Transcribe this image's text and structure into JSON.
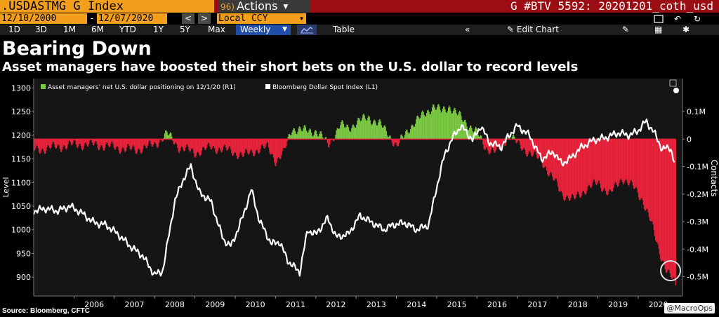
{
  "header": {
    "ticker": ".USDASTMG G Index",
    "actions_badge": "96)",
    "actions_label": "Actions",
    "doc_title": "G #BTV 5592: 20201201_coth_usd"
  },
  "security_bar": {
    "start_date": "12/10/2000",
    "end_date": "12/07/2020",
    "currency": "Local CCY"
  },
  "toolbar": {
    "periods": [
      "1D",
      "3D",
      "1M",
      "6M",
      "YTD",
      "1Y",
      "5Y",
      "Max"
    ],
    "period_select": "Weekly",
    "table_label": "Table",
    "edit_chart_label": "Edit Chart"
  },
  "annotation": {
    "title": "Bearing Down",
    "subtitle": "Asset managers have boosted their short bets on the U.S. dollar to record levels"
  },
  "footer": {
    "source": "Source: Bloomberg, CFTC",
    "watermark": "@MacroOps"
  },
  "colors": {
    "header_bg": "#9b0d12",
    "accent_orange": "#f49f1c",
    "positive_bar": "#7ac943",
    "negative_bar": "#e8223a",
    "line": "#ffffff"
  },
  "chart_data": {
    "type": "line",
    "legend": [
      "Asset managers' net U.S. dollar positioning on 12/1/20 (R1)",
      "Bloomberg Dollar Spot Index (L1)"
    ],
    "ylabel": "Level",
    "y2label": "Contacts",
    "x_ticks": [
      "2006",
      "2007",
      "2008",
      "2009",
      "2010",
      "2011",
      "2012",
      "2013",
      "2014",
      "2015",
      "2016",
      "2017",
      "2018",
      "2019",
      "2020"
    ],
    "ylim": [
      860,
      1320
    ],
    "y_ticks": [
      "1300",
      "1250",
      "1200",
      "1150",
      "1100",
      "1050",
      "1000",
      "950",
      "900"
    ],
    "y2lim": [
      -0.57,
      0.22
    ],
    "y2_ticks": [
      "0.1M",
      "0",
      "-0.1M",
      "-0.2M",
      "-0.3M",
      "-0.4M",
      "-0.5M"
    ],
    "grid": false,
    "legend_position": "top-left",
    "series": [
      {
        "name": "Bloomberg Dollar Spot Index (L1)",
        "axis": "left",
        "x": [
          2005.0,
          2005.3,
          2005.6,
          2005.9,
          2006.2,
          2006.5,
          2006.8,
          2007.1,
          2007.4,
          2007.7,
          2008.0,
          2008.2,
          2008.5,
          2008.7,
          2008.9,
          2009.1,
          2009.4,
          2009.7,
          2009.9,
          2010.2,
          2010.4,
          2010.6,
          2010.9,
          2011.1,
          2011.3,
          2011.6,
          2011.8,
          2012.0,
          2012.3,
          2012.5,
          2012.8,
          2013.1,
          2013.4,
          2013.7,
          2013.9,
          2014.2,
          2014.5,
          2014.8,
          2015.0,
          2015.2,
          2015.4,
          2015.6,
          2015.9,
          2016.1,
          2016.3,
          2016.6,
          2016.8,
          2017.0,
          2017.3,
          2017.6,
          2017.9,
          2018.1,
          2018.3,
          2018.6,
          2018.9,
          2019.2,
          2019.5,
          2019.8,
          2020.0,
          2020.2,
          2020.4,
          2020.6,
          2020.8,
          2020.92
        ],
        "values": [
          1040,
          1045,
          1040,
          1050,
          1035,
          1015,
          1010,
          990,
          965,
          945,
          905,
          912,
          1060,
          1105,
          1135,
          1080,
          1060,
          980,
          965,
          1030,
          1085,
          1020,
          970,
          975,
          935,
          910,
          1000,
          990,
          1025,
          985,
          990,
          1030,
          1015,
          1000,
          1010,
          1015,
          1000,
          1010,
          1090,
          1160,
          1195,
          1220,
          1190,
          1220,
          1185,
          1175,
          1200,
          1220,
          1200,
          1150,
          1165,
          1140,
          1150,
          1175,
          1190,
          1195,
          1205,
          1200,
          1210,
          1230,
          1205,
          1170,
          1175,
          1135
        ]
      },
      {
        "name": "Asset managers' net U.S. dollar positioning on 12/1/20 (R1)",
        "axis": "right",
        "type": "bar",
        "x": [
          2005.0,
          2005.5,
          2006.0,
          2006.5,
          2007.0,
          2007.5,
          2008.0,
          2008.3,
          2008.6,
          2009.0,
          2009.4,
          2009.8,
          2010.2,
          2010.5,
          2010.8,
          2011.0,
          2011.2,
          2011.4,
          2011.7,
          2012.0,
          2012.3,
          2012.6,
          2012.8,
          2013.0,
          2013.3,
          2013.6,
          2013.8,
          2014.0,
          2014.3,
          2014.6,
          2014.9,
          2015.1,
          2015.3,
          2015.5,
          2015.8,
          2016.0,
          2016.2,
          2016.5,
          2016.8,
          2017.0,
          2017.3,
          2017.6,
          2017.9,
          2018.1,
          2018.4,
          2018.7,
          2019.0,
          2019.3,
          2019.6,
          2019.9,
          2020.1,
          2020.3,
          2020.5,
          2020.7,
          2020.92
        ],
        "values": [
          -0.04,
          -0.03,
          -0.02,
          -0.02,
          -0.03,
          -0.04,
          -0.02,
          0.02,
          -0.03,
          -0.05,
          -0.03,
          -0.04,
          -0.06,
          -0.04,
          -0.03,
          -0.08,
          -0.05,
          0.04,
          0.03,
          0.03,
          -0.02,
          0.05,
          0.04,
          0.06,
          0.08,
          0.05,
          0.02,
          -0.03,
          0.04,
          0.08,
          0.12,
          0.1,
          0.12,
          0.09,
          0.05,
          0.02,
          -0.03,
          -0.05,
          0.02,
          -0.02,
          -0.05,
          -0.08,
          -0.15,
          -0.2,
          -0.22,
          -0.18,
          -0.16,
          -0.2,
          -0.14,
          -0.18,
          -0.22,
          -0.3,
          -0.4,
          -0.48,
          -0.53
        ]
      }
    ]
  }
}
